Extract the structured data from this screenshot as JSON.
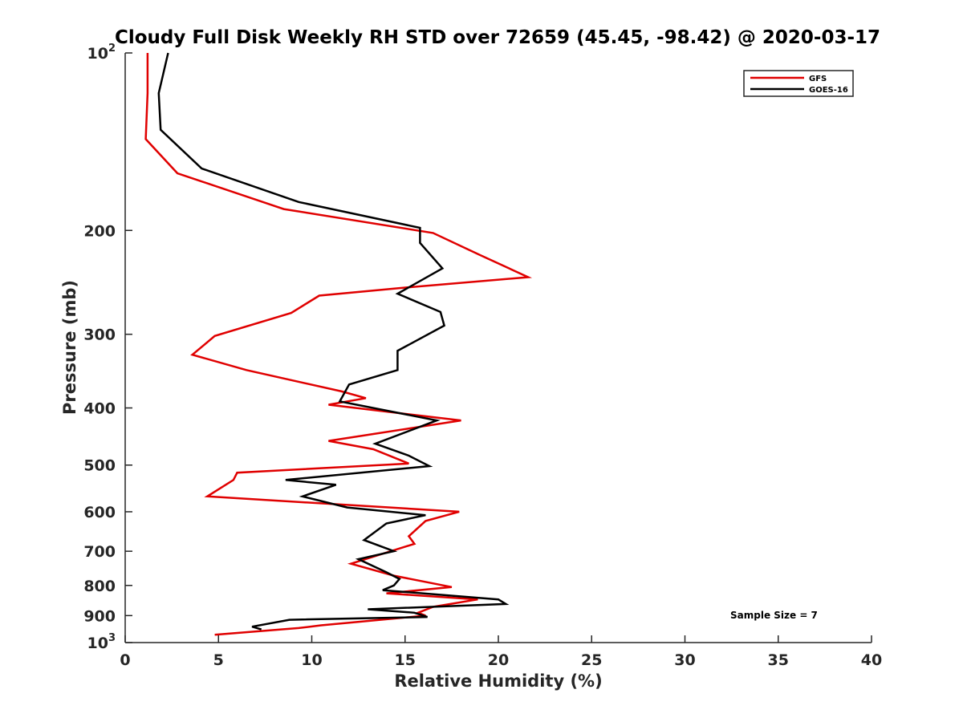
{
  "chart_data": {
    "type": "line",
    "title": "Cloudy Full Disk Weekly RH STD over 72659 (45.45, -98.42) @ 2020-03-17",
    "xlabel": "Relative Humidity (%)",
    "ylabel": "Pressure (mb)",
    "xlim": [
      0,
      40
    ],
    "ylim": [
      100,
      1000
    ],
    "yscale": "log",
    "y_reversed": true,
    "x_ticks": [
      "0",
      "5",
      "10",
      "15",
      "20",
      "25",
      "30",
      "35",
      "40"
    ],
    "y_ticks": [
      {
        "value": 100,
        "label_base": "10",
        "label_exp": "2"
      },
      {
        "value": 200,
        "label_base": "200",
        "label_exp": ""
      },
      {
        "value": 300,
        "label_base": "300",
        "label_exp": ""
      },
      {
        "value": 400,
        "label_base": "400",
        "label_exp": ""
      },
      {
        "value": 500,
        "label_base": "500",
        "label_exp": ""
      },
      {
        "value": 600,
        "label_base": "600",
        "label_exp": ""
      },
      {
        "value": 700,
        "label_base": "700",
        "label_exp": ""
      },
      {
        "value": 800,
        "label_base": "800",
        "label_exp": ""
      },
      {
        "value": 900,
        "label_base": "900",
        "label_exp": ""
      },
      {
        "value": 1000,
        "label_base": "10",
        "label_exp": "3"
      }
    ],
    "grid": false,
    "legend_position": "top-right",
    "annotation": "Sample Size = 7",
    "series": [
      {
        "name": "GFS",
        "color": "#e00000",
        "points": [
          [
            1.2,
            100
          ],
          [
            1.2,
            117
          ],
          [
            1.1,
            140
          ],
          [
            2.8,
            160
          ],
          [
            8.5,
            184
          ],
          [
            16.5,
            202
          ],
          [
            19.0,
            220
          ],
          [
            21.6,
            240
          ],
          [
            15.0,
            250
          ],
          [
            10.4,
            258
          ],
          [
            8.9,
            276
          ],
          [
            4.8,
            302
          ],
          [
            3.6,
            325
          ],
          [
            6.5,
            345
          ],
          [
            11.6,
            375
          ],
          [
            12.9,
            385
          ],
          [
            10.9,
            395
          ],
          [
            18.0,
            420
          ],
          [
            10.9,
            455
          ],
          [
            13.3,
            470
          ],
          [
            15.2,
            497
          ],
          [
            6.0,
            515
          ],
          [
            5.8,
            530
          ],
          [
            4.4,
            565
          ],
          [
            17.9,
            600
          ],
          [
            16.1,
            622
          ],
          [
            15.2,
            660
          ],
          [
            15.5,
            680
          ],
          [
            12.1,
            735
          ],
          [
            14.4,
            770
          ],
          [
            17.5,
            805
          ],
          [
            14.0,
            825
          ],
          [
            18.9,
            845
          ],
          [
            16.5,
            870
          ],
          [
            15.7,
            890
          ],
          [
            16.1,
            900
          ],
          [
            10.5,
            935
          ],
          [
            9.3,
            945
          ],
          [
            4.8,
            970
          ]
        ]
      },
      {
        "name": "GOES-16",
        "color": "#000000",
        "points": [
          [
            2.3,
            100
          ],
          [
            1.8,
            117
          ],
          [
            1.9,
            135
          ],
          [
            4.1,
            157
          ],
          [
            9.3,
            179
          ],
          [
            15.8,
            198
          ],
          [
            15.8,
            210
          ],
          [
            17.0,
            232
          ],
          [
            14.6,
            256
          ],
          [
            16.9,
            275
          ],
          [
            17.1,
            290
          ],
          [
            14.6,
            320
          ],
          [
            14.6,
            345
          ],
          [
            12.0,
            365
          ],
          [
            11.5,
            390
          ],
          [
            16.7,
            420
          ],
          [
            13.4,
            460
          ],
          [
            15.2,
            482
          ],
          [
            16.3,
            502
          ],
          [
            8.6,
            530
          ],
          [
            11.3,
            540
          ],
          [
            9.5,
            565
          ],
          [
            11.9,
            590
          ],
          [
            16.1,
            608
          ],
          [
            14.0,
            628
          ],
          [
            12.8,
            670
          ],
          [
            14.4,
            700
          ],
          [
            12.5,
            722
          ],
          [
            14.0,
            760
          ],
          [
            14.7,
            780
          ],
          [
            14.4,
            800
          ],
          [
            13.8,
            815
          ],
          [
            20.0,
            845
          ],
          [
            20.4,
            860
          ],
          [
            13.0,
            878
          ],
          [
            15.5,
            890
          ],
          [
            16.2,
            905
          ],
          [
            8.8,
            915
          ],
          [
            6.8,
            940
          ],
          [
            7.3,
            950
          ]
        ]
      }
    ]
  }
}
